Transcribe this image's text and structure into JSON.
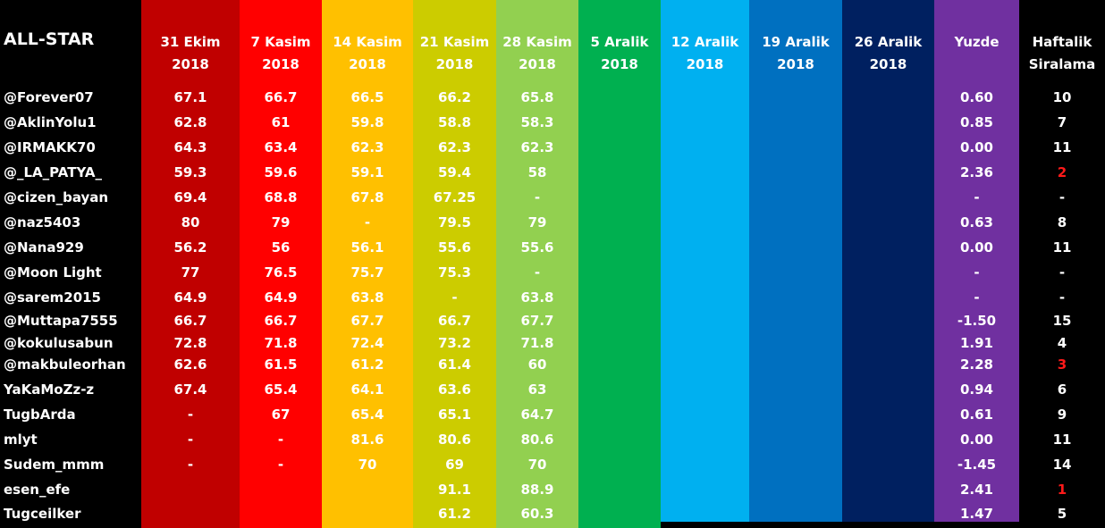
{
  "title": "ALL-STAR",
  "columns": [
    {
      "line1": "31 Ekim",
      "line2": "2018",
      "color": "#c00000"
    },
    {
      "line1": "7 Kasim",
      "line2": "2018",
      "color": "#ff0000"
    },
    {
      "line1": "14 Kasim",
      "line2": "2018",
      "color": "#ffc000"
    },
    {
      "line1": "21 Kasim",
      "line2": "2018",
      "color": "#cccc00"
    },
    {
      "line1": "28 Kasim",
      "line2": "2018",
      "color": "#92d050"
    },
    {
      "line1": "5 Aralik",
      "line2": "2018",
      "color": "#00b050"
    },
    {
      "line1": "12 Aralik",
      "line2": "2018",
      "color": "#00b0f0"
    },
    {
      "line1": "19 Aralik",
      "line2": "2018",
      "color": "#0070c0"
    },
    {
      "line1": "26 Aralik",
      "line2": "2018",
      "color": "#002060"
    },
    {
      "line1": "Yuzde",
      "line2": "",
      "color": "#7030a0"
    },
    {
      "line1": "Haftalik",
      "line2": "Siralama",
      "color": "#000000"
    }
  ],
  "rows": [
    {
      "name": "@Forever07",
      "v": [
        "67.1",
        "66.7",
        "66.5",
        "66.2",
        "65.8"
      ],
      "yuzde": "0.60",
      "rank": "10",
      "rank_red": false
    },
    {
      "name": "@AklinYolu1",
      "v": [
        "62.8",
        "61",
        "59.8",
        "58.8",
        "58.3"
      ],
      "yuzde": "0.85",
      "rank": "7",
      "rank_red": false
    },
    {
      "name": "@IRMAKK70",
      "v": [
        "64.3",
        "63.4",
        "62.3",
        "62.3",
        "62.3"
      ],
      "yuzde": "0.00",
      "rank": "11",
      "rank_red": false
    },
    {
      "name": "@_LA_PATYA_",
      "v": [
        "59.3",
        "59.6",
        "59.1",
        "59.4",
        "58"
      ],
      "yuzde": "2.36",
      "rank": "2",
      "rank_red": true
    },
    {
      "name": "@cizen_bayan",
      "v": [
        "69.4",
        "68.8",
        "67.8",
        "67.25",
        "-"
      ],
      "yuzde": "-",
      "rank": "-",
      "rank_red": false
    },
    {
      "name": "@naz5403",
      "v": [
        "80",
        "79",
        "-",
        "79.5",
        "79"
      ],
      "yuzde": "0.63",
      "rank": "8",
      "rank_red": false
    },
    {
      "name": "@Nana929",
      "v": [
        "56.2",
        "56",
        "56.1",
        "55.6",
        "55.6"
      ],
      "yuzde": "0.00",
      "rank": "11",
      "rank_red": false
    },
    {
      "name": "@Moon Light",
      "v": [
        "77",
        "76.5",
        "75.7",
        "75.3",
        "-"
      ],
      "yuzde": "-",
      "rank": "-",
      "rank_red": false
    },
    {
      "name": "@sarem2015",
      "v": [
        "64.9",
        "64.9",
        "63.8",
        "-",
        "63.8"
      ],
      "yuzde": "-",
      "rank": "-",
      "rank_red": false
    },
    {
      "name": "@Muttapa7555",
      "v": [
        "66.7",
        "66.7",
        "67.7",
        "66.7",
        "67.7"
      ],
      "yuzde": "-1.50",
      "rank": "15",
      "rank_red": false
    },
    {
      "name": "@kokulusabun",
      "v": [
        "72.8",
        "71.8",
        "72.4",
        "73.2",
        "71.8"
      ],
      "yuzde": "1.91",
      "rank": "4",
      "rank_red": false
    },
    {
      "name": "@makbuleorhan",
      "v": [
        "62.6",
        "61.5",
        "61.2",
        "61.4",
        "60"
      ],
      "yuzde": "2.28",
      "rank": "3",
      "rank_red": true
    },
    {
      "name": "YaKaMoZz-z",
      "v": [
        "67.4",
        "65.4",
        "64.1",
        "63.6",
        "63"
      ],
      "yuzde": "0.94",
      "rank": "6",
      "rank_red": false
    },
    {
      "name": "TugbArda",
      "v": [
        "-",
        "67",
        "65.4",
        "65.1",
        "64.7"
      ],
      "yuzde": "0.61",
      "rank": "9",
      "rank_red": false
    },
    {
      "name": "mlyt",
      "v": [
        "-",
        "-",
        "81.6",
        "80.6",
        "80.6"
      ],
      "yuzde": "0.00",
      "rank": "11",
      "rank_red": false
    },
    {
      "name": "Sudem_mmm",
      "v": [
        "-",
        "-",
        "70",
        "69",
        "70"
      ],
      "yuzde": "-1.45",
      "rank": "14",
      "rank_red": false
    },
    {
      "name": "esen_efe",
      "v": [
        "",
        "",
        "",
        "91.1",
        "88.9"
      ],
      "yuzde": "2.41",
      "rank": "1",
      "rank_red": true
    },
    {
      "name": "Tugceilker",
      "v": [
        "",
        "",
        "",
        "61.2",
        "60.3"
      ],
      "yuzde": "1.47",
      "rank": "5",
      "rank_red": false
    }
  ]
}
